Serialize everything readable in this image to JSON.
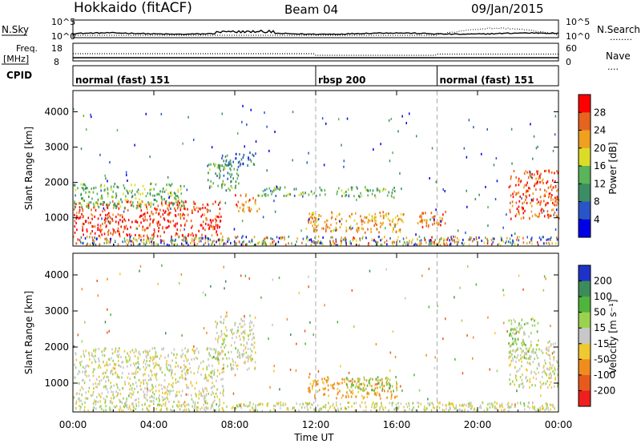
{
  "header": {
    "site": "Hokkaido (fitACF)",
    "beam": "Beam 04",
    "date": "09/Jan/2015"
  },
  "nsky_panel": {
    "left_label": "N.Sky",
    "right_label": "N.Search",
    "right_legend_line": "........",
    "left_ticks": [
      "10^5",
      "10^0"
    ],
    "right_ticks": [
      "10^5",
      "10^0"
    ]
  },
  "freq_panel": {
    "left_label_line1": "Freq.",
    "left_label_line2": "[MHz]",
    "right_label": "Nave",
    "right_legend_line": "....",
    "left_ticks": [
      "18",
      "8"
    ],
    "right_ticks": [
      "60",
      "0"
    ]
  },
  "cpid_panel": {
    "label": "CPID",
    "segments": [
      {
        "name": "normal (fast) 151",
        "start_hour": 0,
        "end_hour": 12
      },
      {
        "name": "rbsp 200",
        "start_hour": 12,
        "end_hour": 18
      },
      {
        "name": "normal (fast) 151",
        "start_hour": 18,
        "end_hour": 24
      }
    ]
  },
  "chart_data": [
    {
      "type": "heatmap",
      "name": "power",
      "ylabel": "Slant Range [km]",
      "ylim": [
        200,
        4600
      ],
      "yticks": [
        1000,
        2000,
        3000,
        4000
      ],
      "xlim": [
        0,
        24
      ],
      "xtick_labels": [
        "00:00",
        "04:00",
        "08:00",
        "12:00",
        "16:00",
        "20:00",
        "00:00"
      ],
      "colorbar": {
        "label": "Power [dB]",
        "ticks": [
          4,
          8,
          12,
          16,
          20,
          24,
          28
        ],
        "colors": [
          "#0000e6",
          "#2a55c8",
          "#3c8c64",
          "#5ab45a",
          "#dcdc28",
          "#f0a01e",
          "#e6641e",
          "#ff0000"
        ]
      },
      "regions": [
        {
          "t": [
            0.0,
            7.3
          ],
          "range": [
            500,
            1500
          ],
          "level": 28
        },
        {
          "t": [
            0.0,
            5.5
          ],
          "range": [
            1300,
            2000
          ],
          "level": 14
        },
        {
          "t": [
            6.6,
            8.2
          ],
          "range": [
            1800,
            2600
          ],
          "level": 12
        },
        {
          "t": [
            7.2,
            9.0
          ],
          "range": [
            2500,
            2900
          ],
          "level": 8
        },
        {
          "t": [
            8.0,
            9.2
          ],
          "range": [
            1200,
            1700
          ],
          "level": 24
        },
        {
          "t": [
            9.0,
            12.5
          ],
          "range": [
            1650,
            1900
          ],
          "level": 12
        },
        {
          "t": [
            11.5,
            16.5
          ],
          "range": [
            600,
            1200
          ],
          "level": 22
        },
        {
          "t": [
            13.0,
            16.0
          ],
          "range": [
            1600,
            1900
          ],
          "level": 14
        },
        {
          "t": [
            17.0,
            18.5
          ],
          "range": [
            700,
            1200
          ],
          "level": 24
        },
        {
          "t": [
            21.5,
            24.0
          ],
          "range": [
            1000,
            2400
          ],
          "level": 26
        }
      ]
    },
    {
      "type": "heatmap",
      "name": "velocity",
      "xlabel": "Time UT",
      "ylabel": "Slant Range [km]",
      "ylim": [
        200,
        4600
      ],
      "yticks": [
        1000,
        2000,
        3000,
        4000
      ],
      "xlim": [
        0,
        24
      ],
      "xtick_labels": [
        "00:00",
        "04:00",
        "08:00",
        "12:00",
        "16:00",
        "20:00",
        "00:00"
      ],
      "colorbar": {
        "label": "Velocity [m s⁻¹]",
        "ticks": [
          200,
          100,
          50,
          15,
          -15,
          -50,
          -100,
          -200
        ],
        "colors": [
          "#1e32c8",
          "#3c8c5a",
          "#50b43c",
          "#9ad250",
          "#c8c8c8",
          "#f0c830",
          "#f08c1e",
          "#e65a1e",
          "#f01e1e"
        ]
      },
      "regions": [
        {
          "t": [
            0.0,
            7.5
          ],
          "range": [
            500,
            2000
          ],
          "velocity": 0
        },
        {
          "t": [
            7.0,
            9.0
          ],
          "range": [
            1400,
            2900
          ],
          "velocity": 0
        },
        {
          "t": [
            11.5,
            16.0
          ],
          "range": [
            600,
            1200
          ],
          "velocity": -60
        },
        {
          "t": [
            13.5,
            16.0
          ],
          "range": [
            800,
            1200
          ],
          "velocity": 40
        },
        {
          "t": [
            21.5,
            24.0
          ],
          "range": [
            900,
            2200
          ],
          "velocity": 0
        },
        {
          "t": [
            21.5,
            23.0
          ],
          "range": [
            1700,
            2800
          ],
          "velocity": 30
        }
      ]
    }
  ]
}
